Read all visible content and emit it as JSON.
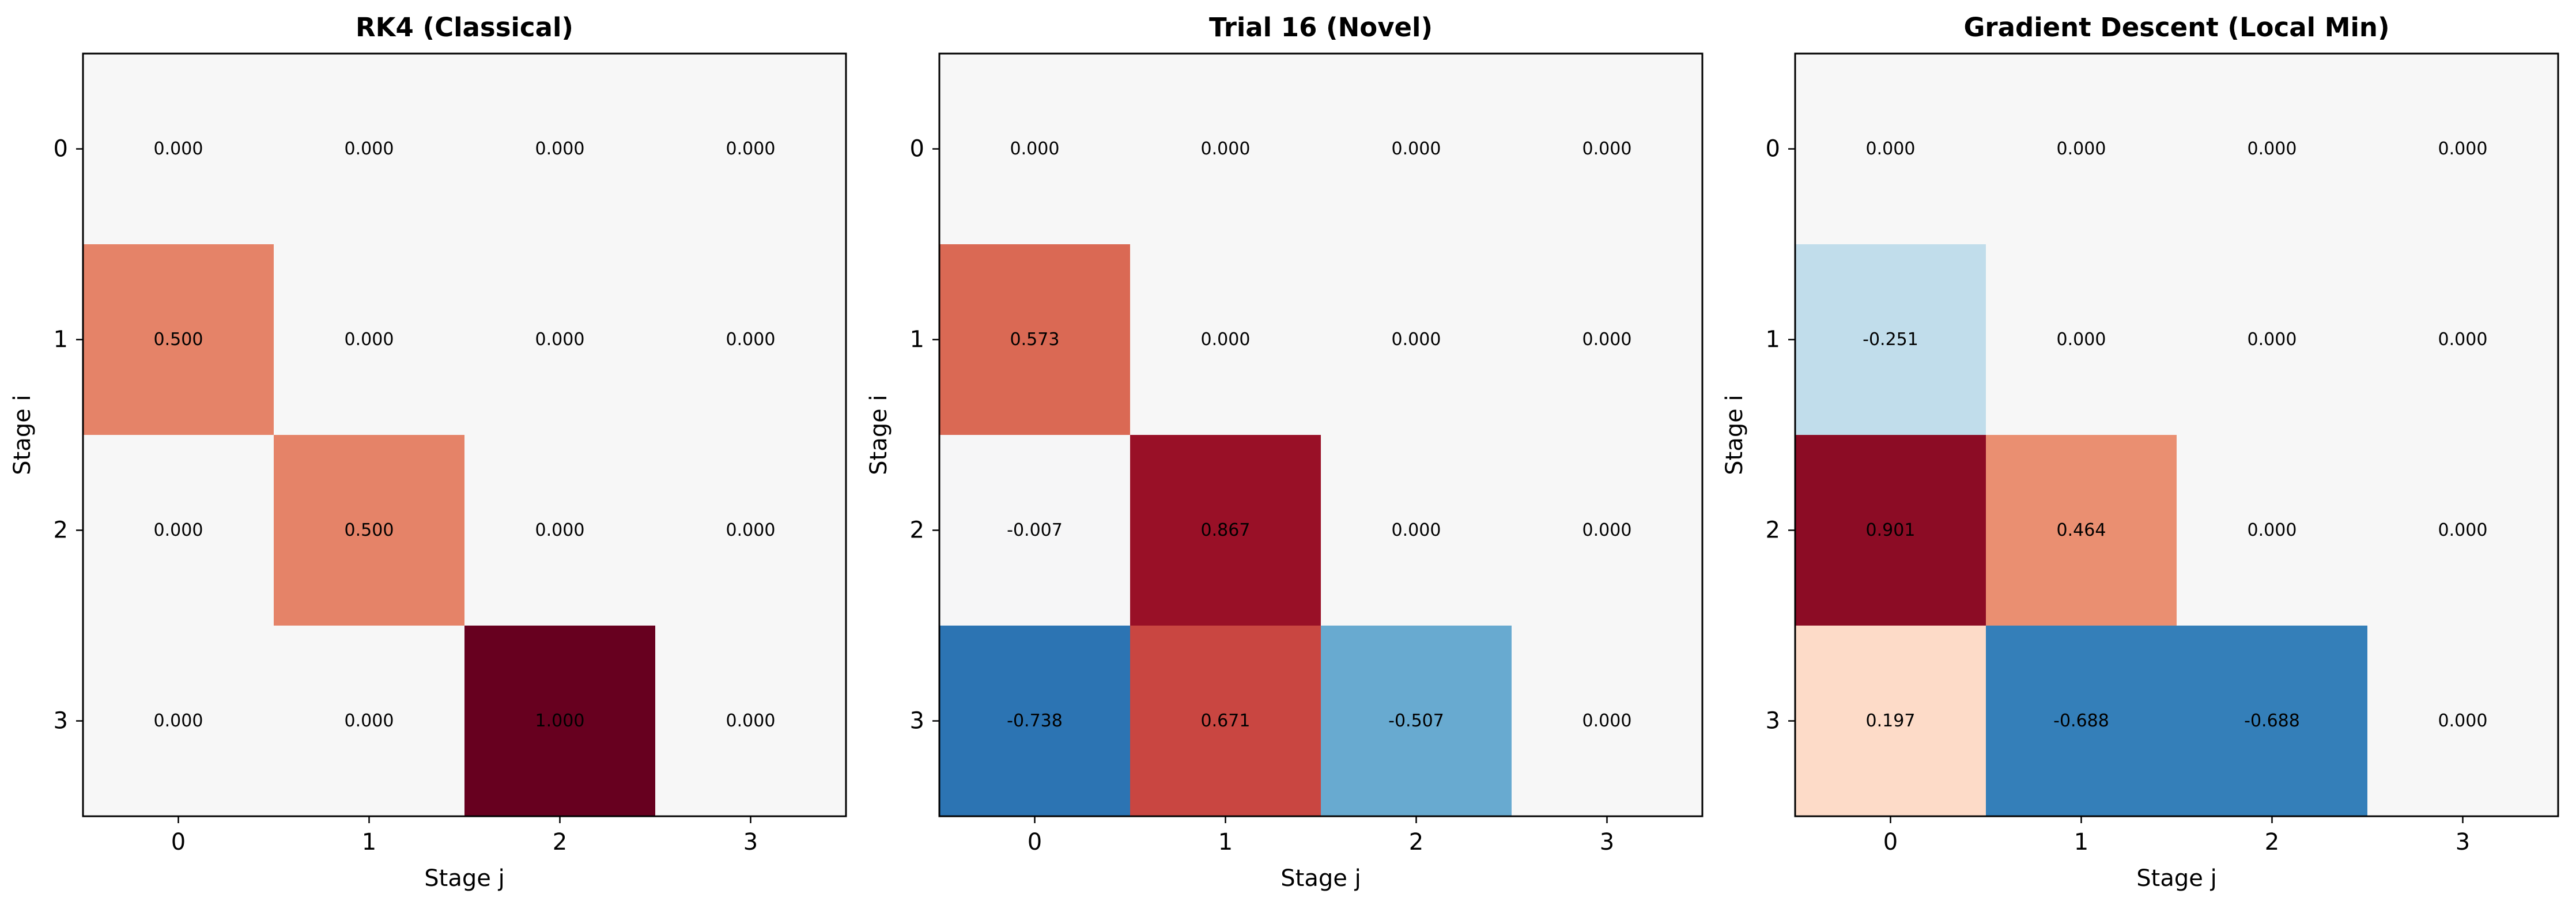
{
  "chart_data": [
    {
      "type": "heatmap",
      "title": "RK4 (Classical)",
      "xlabel": "Stage j",
      "ylabel": "Stage i",
      "x_ticks": [
        "0",
        "1",
        "2",
        "3"
      ],
      "y_ticks": [
        "0",
        "1",
        "2",
        "3"
      ],
      "colormap": "RdBu_r",
      "color_range": [
        -1,
        1
      ],
      "values": [
        [
          0.0,
          0.0,
          0.0,
          0.0
        ],
        [
          0.5,
          0.0,
          0.0,
          0.0
        ],
        [
          0.0,
          0.5,
          0.0,
          0.0
        ],
        [
          0.0,
          0.0,
          1.0,
          0.0
        ]
      ],
      "labels": [
        [
          "0.000",
          "0.000",
          "0.000",
          "0.000"
        ],
        [
          "0.500",
          "0.000",
          "0.000",
          "0.000"
        ],
        [
          "0.000",
          "0.500",
          "0.000",
          "0.000"
        ],
        [
          "0.000",
          "0.000",
          "1.000",
          "0.000"
        ]
      ]
    },
    {
      "type": "heatmap",
      "title": "Trial 16 (Novel)",
      "xlabel": "Stage j",
      "ylabel": "Stage i",
      "x_ticks": [
        "0",
        "1",
        "2",
        "3"
      ],
      "y_ticks": [
        "0",
        "1",
        "2",
        "3"
      ],
      "colormap": "RdBu_r",
      "color_range": [
        -1,
        1
      ],
      "values": [
        [
          0.0,
          0.0,
          0.0,
          0.0
        ],
        [
          0.573,
          0.0,
          0.0,
          0.0
        ],
        [
          -0.007,
          0.867,
          0.0,
          0.0
        ],
        [
          -0.738,
          0.671,
          -0.507,
          0.0
        ]
      ],
      "labels": [
        [
          "0.000",
          "0.000",
          "0.000",
          "0.000"
        ],
        [
          "0.573",
          "0.000",
          "0.000",
          "0.000"
        ],
        [
          "-0.007",
          "0.867",
          "0.000",
          "0.000"
        ],
        [
          "-0.738",
          "0.671",
          "-0.507",
          "0.000"
        ]
      ]
    },
    {
      "type": "heatmap",
      "title": "Gradient Descent (Local Min)",
      "xlabel": "Stage j",
      "ylabel": "Stage i",
      "x_ticks": [
        "0",
        "1",
        "2",
        "3"
      ],
      "y_ticks": [
        "0",
        "1",
        "2",
        "3"
      ],
      "colormap": "RdBu_r",
      "color_range": [
        -1,
        1
      ],
      "values": [
        [
          0.0,
          0.0,
          0.0,
          0.0
        ],
        [
          -0.251,
          0.0,
          0.0,
          0.0
        ],
        [
          0.901,
          0.464,
          0.0,
          0.0
        ],
        [
          0.197,
          -0.688,
          -0.688,
          0.0
        ]
      ],
      "labels": [
        [
          "0.000",
          "0.000",
          "0.000",
          "0.000"
        ],
        [
          "-0.251",
          "0.000",
          "0.000",
          "0.000"
        ],
        [
          "0.901",
          "0.464",
          "0.000",
          "0.000"
        ],
        [
          "0.197",
          "-0.688",
          "-0.688",
          "0.000"
        ]
      ]
    }
  ]
}
